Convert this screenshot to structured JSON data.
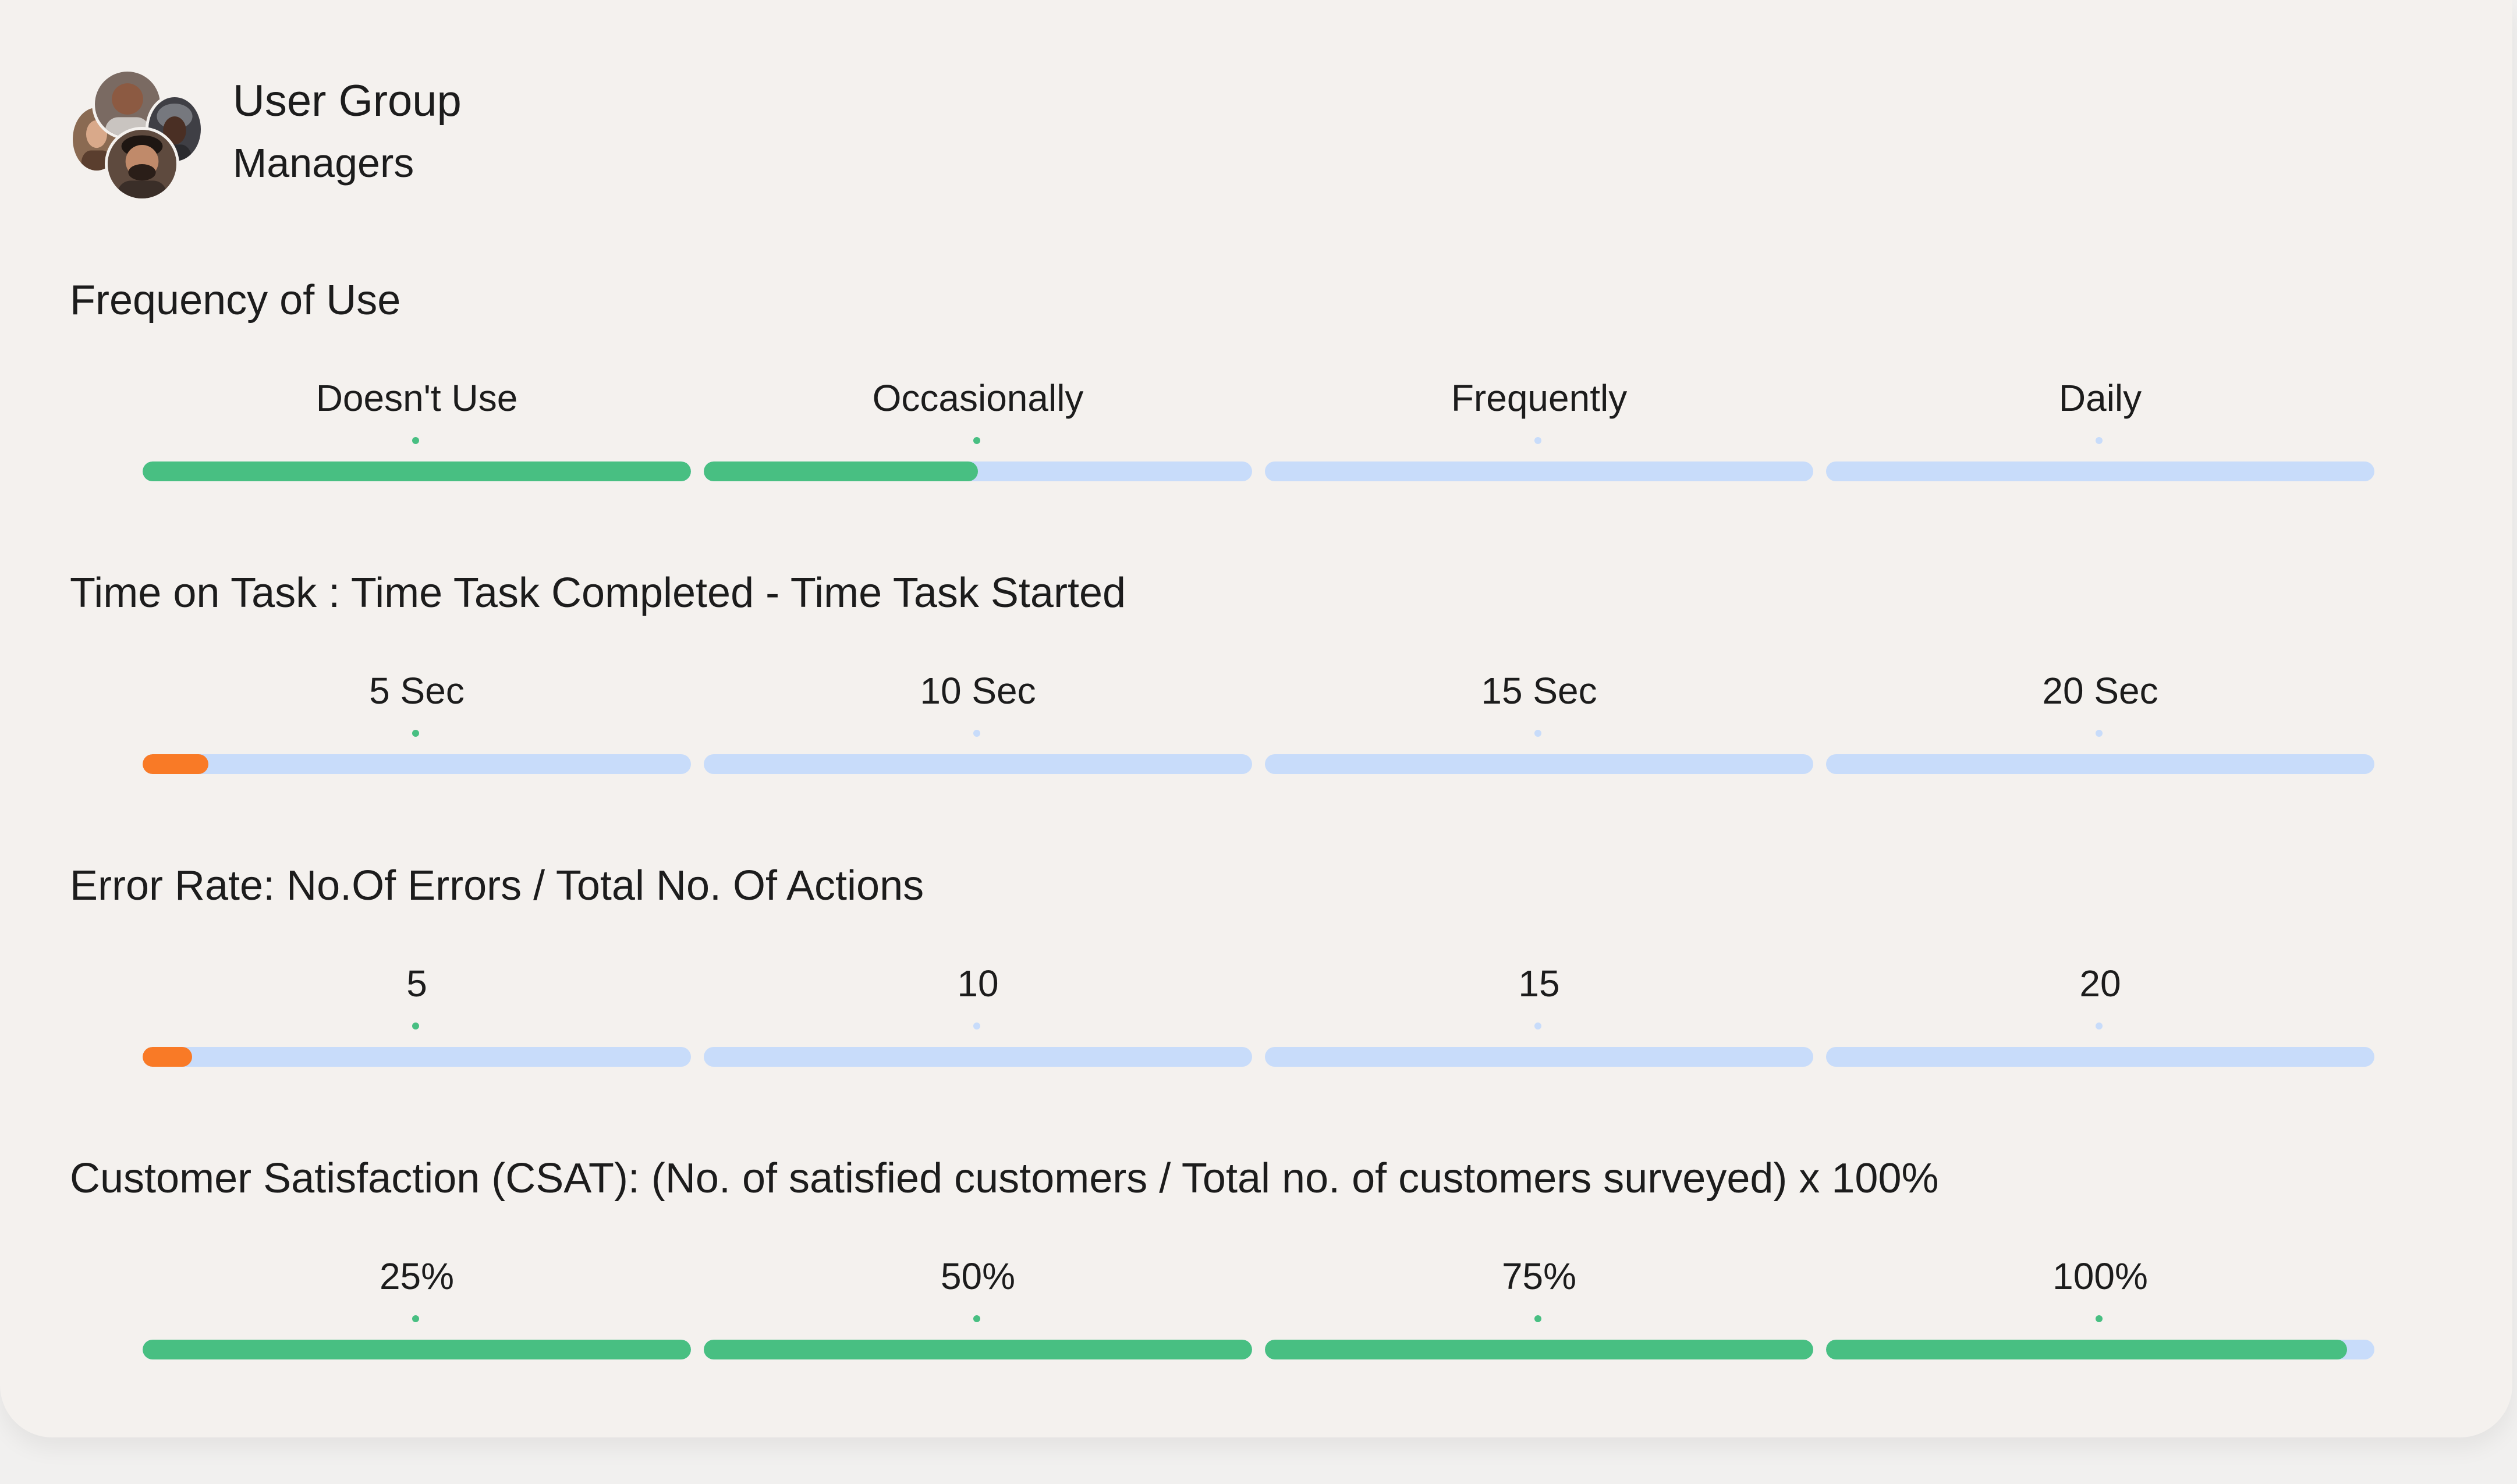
{
  "colors": {
    "track": "#c8dcfa",
    "good": "#48bf82",
    "warn": "#f97a26",
    "dot_active": "#48bf82",
    "dot_inactive": "#c8dcfa"
  },
  "header": {
    "group_label": "User Group",
    "group_name": "Managers",
    "avatar_icon": "user-avatars-icon"
  },
  "metrics": [
    {
      "title": "Frequency of Use",
      "color": "good",
      "segments": [
        {
          "label": "Doesn't Use",
          "fill": 1.0,
          "active": true
        },
        {
          "label": "Occasionally",
          "fill": 0.5,
          "active": true
        },
        {
          "label": "Frequently",
          "fill": 0.0,
          "active": false
        },
        {
          "label": "Daily",
          "fill": 0.0,
          "active": false
        }
      ]
    },
    {
      "title": "Time on Task : Time Task Completed - Time Task Started",
      "color": "warn",
      "segments": [
        {
          "label": "5 Sec",
          "fill": 0.12,
          "active": true
        },
        {
          "label": "10 Sec",
          "fill": 0.0,
          "active": false
        },
        {
          "label": "15 Sec",
          "fill": 0.0,
          "active": false
        },
        {
          "label": "20 Sec",
          "fill": 0.0,
          "active": false
        }
      ]
    },
    {
      "title": "Error Rate: No.Of Errors / Total No. Of Actions",
      "color": "warn",
      "segments": [
        {
          "label": "5",
          "fill": 0.09,
          "active": true
        },
        {
          "label": "10",
          "fill": 0.0,
          "active": false
        },
        {
          "label": "15",
          "fill": 0.0,
          "active": false
        },
        {
          "label": "20",
          "fill": 0.0,
          "active": false
        }
      ]
    },
    {
      "title": "Customer Satisfaction (CSAT): (No. of satisfied customers / Total no. of customers surveyed) x 100%",
      "color": "good",
      "segments": [
        {
          "label": "25%",
          "fill": 1.0,
          "active": true
        },
        {
          "label": "50%",
          "fill": 1.0,
          "active": true
        },
        {
          "label": "75%",
          "fill": 1.0,
          "active": true
        },
        {
          "label": "100%",
          "fill": 0.95,
          "active": true
        }
      ]
    }
  ]
}
